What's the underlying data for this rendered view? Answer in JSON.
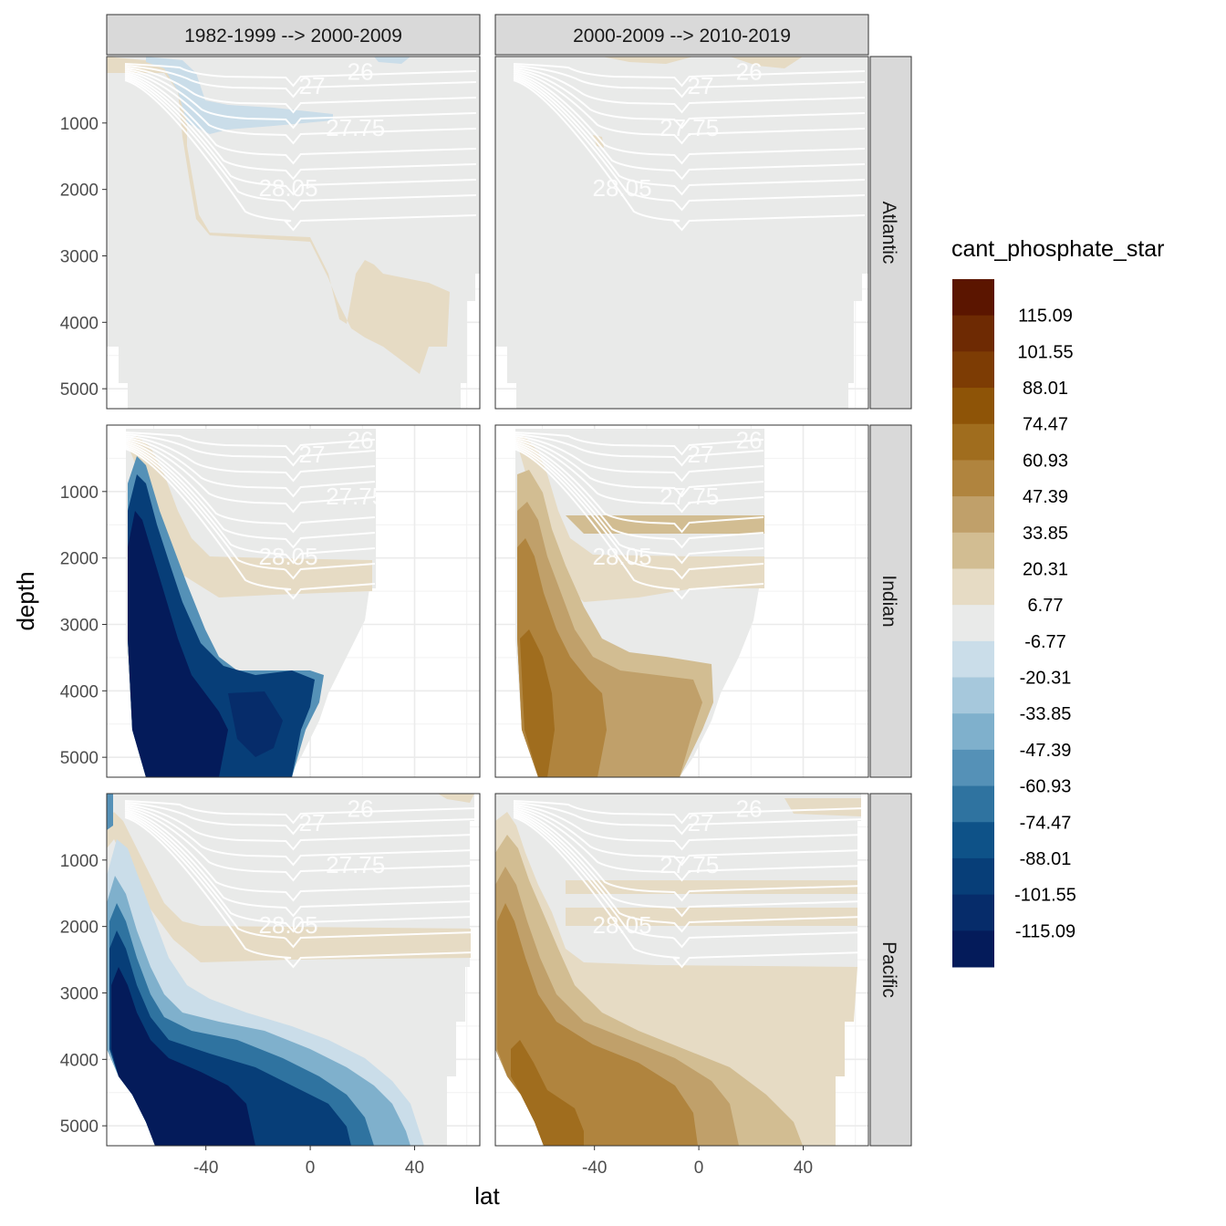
{
  "chart_data": {
    "type": "heatmap",
    "title": "",
    "xlabel": "lat",
    "ylabel": "depth",
    "x_ticks": [
      -40,
      0,
      40
    ],
    "y_ticks": [
      1000,
      2000,
      3000,
      4000,
      5000
    ],
    "xlim": [
      -78,
      65
    ],
    "ylim": [
      5300,
      0
    ],
    "grid": true,
    "facet_columns": [
      "1982-1999 --> 2000-2009",
      "2000-2009 --> 2010-2019"
    ],
    "facet_rows": [
      "Atlantic",
      "Indian",
      "Pacific"
    ],
    "legend": {
      "title": "cant_phosphate_star",
      "position": "right",
      "breaks": [
        "115.09",
        "101.55",
        "88.01",
        "74.47",
        "60.93",
        "47.39",
        "33.85",
        "20.31",
        "6.77",
        "-6.77",
        "-20.31",
        "-33.85",
        "-47.39",
        "-60.93",
        "-74.47",
        "-88.01",
        "-101.55",
        "-115.09"
      ],
      "colors": [
        "#5b1500",
        "#6e2a03",
        "#7d3c04",
        "#8e5407",
        "#a06d1e",
        "#b0843e",
        "#c0a06a",
        "#d2bd92",
        "#e6dbc4",
        "#e9eae9",
        "#cadde9",
        "#a6c8dc",
        "#7fb0cc",
        "#5591b7",
        "#2f73a0",
        "#0e5288",
        "#073e78",
        "#062c6a",
        "#041b5a"
      ]
    },
    "isopycnal_labels": [
      "26",
      "27",
      "27.75",
      "28.05"
    ],
    "panels": [
      {
        "row": "Atlantic",
        "col": "1982-1999 --> 2000-2009",
        "dominant_range": "-6.77 to 6.77",
        "features": [
          {
            "range": "-20.31 to -6.77",
            "lat": [
              -55,
              5
            ],
            "depth": [
              100,
              1200
            ]
          },
          {
            "range": "6.77 to 20.31",
            "lat": [
              -50,
              45
            ],
            "depth": [
              500,
              4800
            ]
          }
        ]
      },
      {
        "row": "Atlantic",
        "col": "2000-2009 --> 2010-2019",
        "dominant_range": "-6.77 to 6.77",
        "features": []
      },
      {
        "row": "Indian",
        "col": "1982-1999 --> 2000-2009",
        "dominant_range": "-6.77 to 6.77",
        "features": [
          {
            "range": "< -115.09 to -60.93",
            "lat": [
              -70,
              5
            ],
            "depth": [
              500,
              5300
            ]
          },
          {
            "range": "6.77 to 20.31",
            "lat": [
              -68,
              23
            ],
            "depth": [
              100,
              2700
            ]
          }
        ]
      },
      {
        "row": "Indian",
        "col": "2000-2009 --> 2010-2019",
        "dominant_range": "6.77 to 60.93",
        "features": [
          {
            "range": "47.39 to 74.47",
            "lat": [
              -70,
              0
            ],
            "depth": [
              700,
              5300
            ]
          }
        ]
      },
      {
        "row": "Pacific",
        "col": "1982-1999 --> 2000-2009",
        "dominant_range": "-6.77 to 6.77",
        "features": [
          {
            "range": "< -115.09 to -47.39",
            "lat": [
              -74,
              40
            ],
            "depth": [
              800,
              5300
            ]
          },
          {
            "range": "6.77 to 20.31",
            "lat": [
              -70,
              60
            ],
            "depth": [
              1900,
              2600
            ]
          }
        ]
      },
      {
        "row": "Pacific",
        "col": "2000-2009 --> 2010-2019",
        "dominant_range": "6.77 to 33.85",
        "features": [
          {
            "range": "33.85 to 74.47",
            "lat": [
              -74,
              20
            ],
            "depth": [
              1000,
              5300
            ]
          }
        ]
      }
    ]
  }
}
